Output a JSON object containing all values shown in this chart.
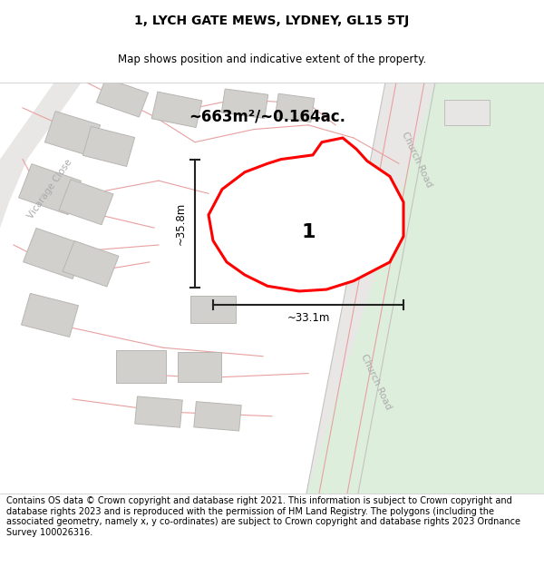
{
  "title": "1, LYCH GATE MEWS, LYDNEY, GL15 5TJ",
  "subtitle": "Map shows position and indicative extent of the property.",
  "area_text": "~663m²/~0.164ac.",
  "width_text": "~33.1m",
  "height_text": "~35.8m",
  "label_1": "1",
  "church_road_label": "Church Road",
  "vicarage_close_label": "Vicarage Close",
  "footer": "Contains OS data © Crown copyright and database right 2021. This information is subject to Crown copyright and database rights 2023 and is reproduced with the permission of HM Land Registry. The polygons (including the associated geometry, namely x, y co-ordinates) are subject to Crown copyright and database rights 2023 Ordnance Survey 100026316.",
  "bg_color": "#f5f4f2",
  "map_bg": "#f0efed",
  "road_color": "#e2e0de",
  "road_border": "#cccccc",
  "building_color": "#d2d0cd",
  "building_border": "#b8b6b3",
  "plot_color": "#ffffff",
  "plot_border": "#ff0000",
  "pink_line_color": "#e8a0a0",
  "green_area": "#ddeedd",
  "footer_fontsize": 7.0,
  "title_fontsize": 10,
  "subtitle_fontsize": 8.5,
  "dim_line_color": "#222222",
  "road_gray": "#d8d6d3",
  "road_label_color": "#aaaaaa"
}
